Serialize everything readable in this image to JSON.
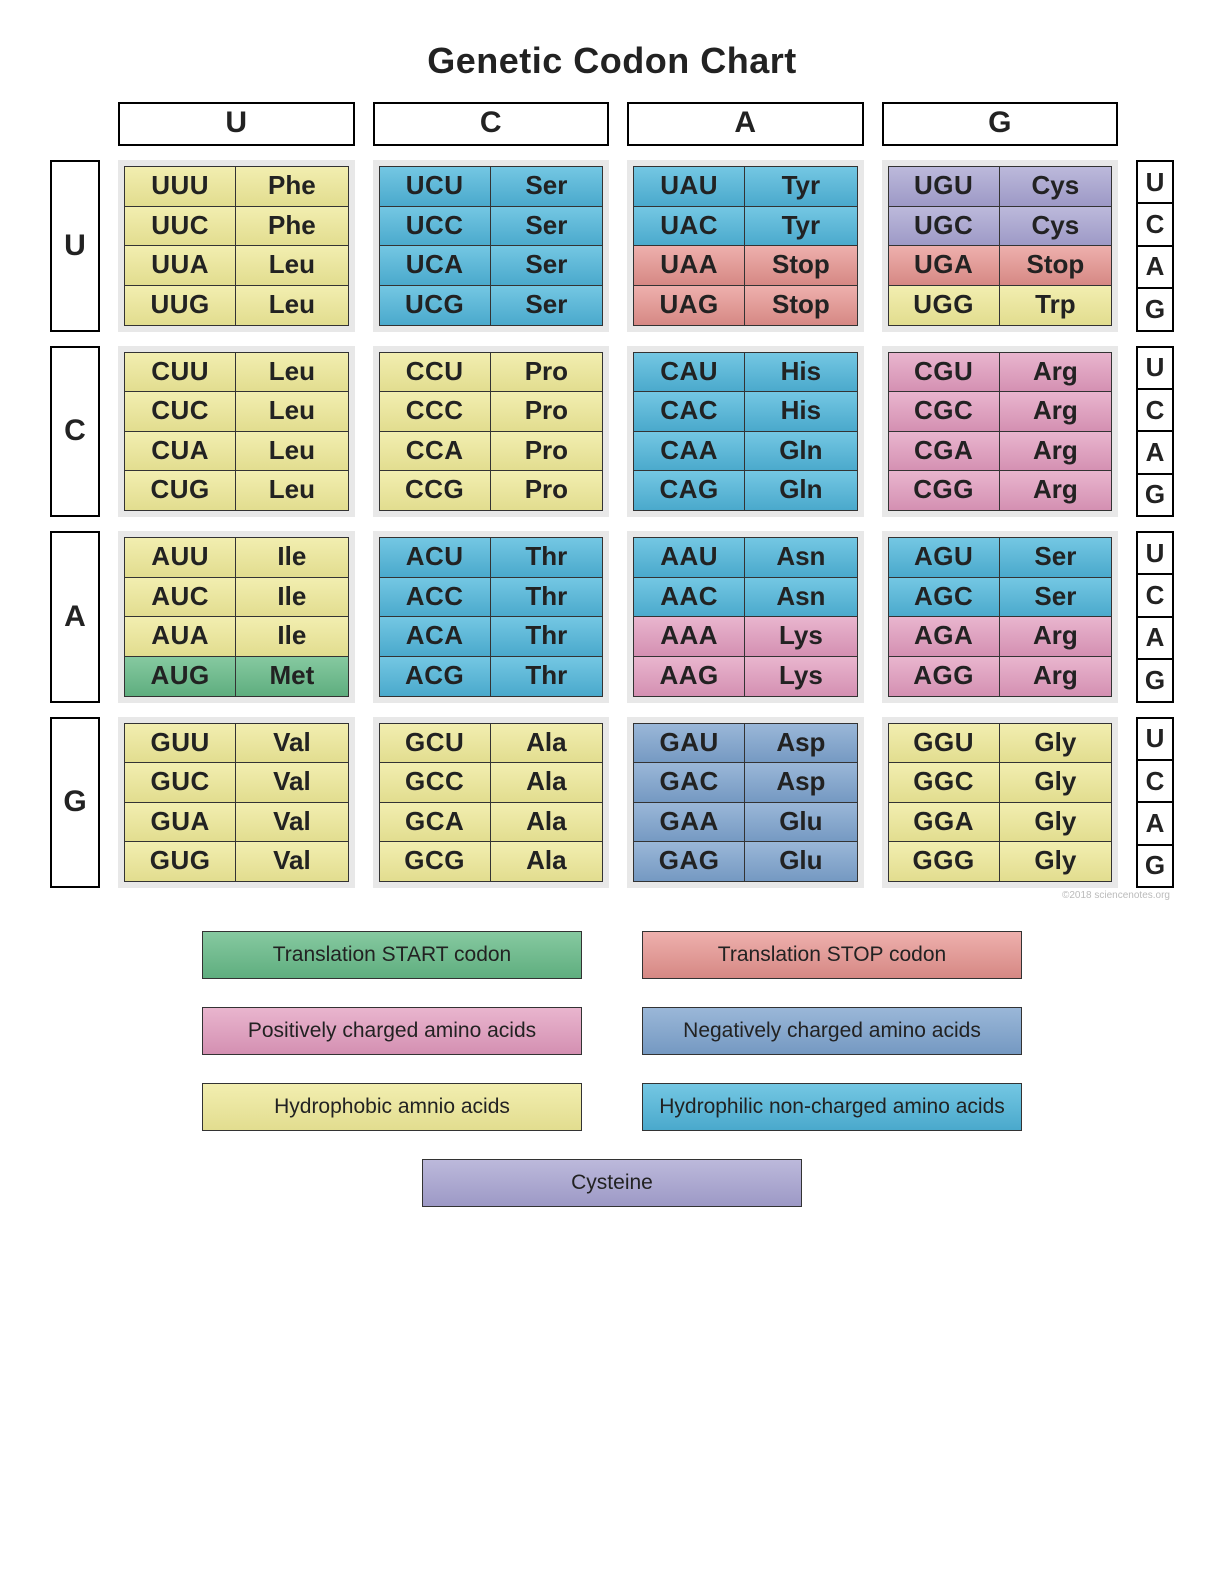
{
  "title": "Genetic Codon Chart",
  "attribution": "©2018 sciencenotes.org",
  "bases": [
    "U",
    "C",
    "A",
    "G"
  ],
  "colors": {
    "start": {
      "from": "#86c9a0",
      "to": "#5fae7f"
    },
    "stop": {
      "from": "#eeb0ad",
      "to": "#d68884"
    },
    "positive": {
      "from": "#e9b5ce",
      "to": "#d490b2"
    },
    "negative": {
      "from": "#9ab7d8",
      "to": "#7599c2"
    },
    "hydrophobic": {
      "from": "#f2eeb0",
      "to": "#e2dd8f"
    },
    "hydrophilic": {
      "from": "#74c7e3",
      "to": "#4aa9cc"
    },
    "cysteine": {
      "from": "#bcb9db",
      "to": "#9d99c6"
    },
    "block_bg": "#e8e8e8"
  },
  "table": {
    "U": {
      "U": [
        [
          "UUU",
          "Phe",
          "hydrophobic"
        ],
        [
          "UUC",
          "Phe",
          "hydrophobic"
        ],
        [
          "UUA",
          "Leu",
          "hydrophobic"
        ],
        [
          "UUG",
          "Leu",
          "hydrophobic"
        ]
      ],
      "C": [
        [
          "UCU",
          "Ser",
          "hydrophilic"
        ],
        [
          "UCC",
          "Ser",
          "hydrophilic"
        ],
        [
          "UCA",
          "Ser",
          "hydrophilic"
        ],
        [
          "UCG",
          "Ser",
          "hydrophilic"
        ]
      ],
      "A": [
        [
          "UAU",
          "Tyr",
          "hydrophilic"
        ],
        [
          "UAC",
          "Tyr",
          "hydrophilic"
        ],
        [
          "UAA",
          "Stop",
          "stop"
        ],
        [
          "UAG",
          "Stop",
          "stop"
        ]
      ],
      "G": [
        [
          "UGU",
          "Cys",
          "cysteine"
        ],
        [
          "UGC",
          "Cys",
          "cysteine"
        ],
        [
          "UGA",
          "Stop",
          "stop"
        ],
        [
          "UGG",
          "Trp",
          "hydrophobic"
        ]
      ]
    },
    "C": {
      "U": [
        [
          "CUU",
          "Leu",
          "hydrophobic"
        ],
        [
          "CUC",
          "Leu",
          "hydrophobic"
        ],
        [
          "CUA",
          "Leu",
          "hydrophobic"
        ],
        [
          "CUG",
          "Leu",
          "hydrophobic"
        ]
      ],
      "C": [
        [
          "CCU",
          "Pro",
          "hydrophobic"
        ],
        [
          "CCC",
          "Pro",
          "hydrophobic"
        ],
        [
          "CCA",
          "Pro",
          "hydrophobic"
        ],
        [
          "CCG",
          "Pro",
          "hydrophobic"
        ]
      ],
      "A": [
        [
          "CAU",
          "His",
          "hydrophilic"
        ],
        [
          "CAC",
          "His",
          "hydrophilic"
        ],
        [
          "CAA",
          "Gln",
          "hydrophilic"
        ],
        [
          "CAG",
          "Gln",
          "hydrophilic"
        ]
      ],
      "G": [
        [
          "CGU",
          "Arg",
          "positive"
        ],
        [
          "CGC",
          "Arg",
          "positive"
        ],
        [
          "CGA",
          "Arg",
          "positive"
        ],
        [
          "CGG",
          "Arg",
          "positive"
        ]
      ]
    },
    "A": {
      "U": [
        [
          "AUU",
          "Ile",
          "hydrophobic"
        ],
        [
          "AUC",
          "Ile",
          "hydrophobic"
        ],
        [
          "AUA",
          "Ile",
          "hydrophobic"
        ],
        [
          "AUG",
          "Met",
          "start"
        ]
      ],
      "C": [
        [
          "ACU",
          "Thr",
          "hydrophilic"
        ],
        [
          "ACC",
          "Thr",
          "hydrophilic"
        ],
        [
          "ACA",
          "Thr",
          "hydrophilic"
        ],
        [
          "ACG",
          "Thr",
          "hydrophilic"
        ]
      ],
      "A": [
        [
          "AAU",
          "Asn",
          "hydrophilic"
        ],
        [
          "AAC",
          "Asn",
          "hydrophilic"
        ],
        [
          "AAA",
          "Lys",
          "positive"
        ],
        [
          "AAG",
          "Lys",
          "positive"
        ]
      ],
      "G": [
        [
          "AGU",
          "Ser",
          "hydrophilic"
        ],
        [
          "AGC",
          "Ser",
          "hydrophilic"
        ],
        [
          "AGA",
          "Arg",
          "positive"
        ],
        [
          "AGG",
          "Arg",
          "positive"
        ]
      ]
    },
    "G": {
      "U": [
        [
          "GUU",
          "Val",
          "hydrophobic"
        ],
        [
          "GUC",
          "Val",
          "hydrophobic"
        ],
        [
          "GUA",
          "Val",
          "hydrophobic"
        ],
        [
          "GUG",
          "Val",
          "hydrophobic"
        ]
      ],
      "C": [
        [
          "GCU",
          "Ala",
          "hydrophobic"
        ],
        [
          "GCC",
          "Ala",
          "hydrophobic"
        ],
        [
          "GCA",
          "Ala",
          "hydrophobic"
        ],
        [
          "GCG",
          "Ala",
          "hydrophobic"
        ]
      ],
      "A": [
        [
          "GAU",
          "Asp",
          "negative"
        ],
        [
          "GAC",
          "Asp",
          "negative"
        ],
        [
          "GAA",
          "Glu",
          "negative"
        ],
        [
          "GAG",
          "Glu",
          "negative"
        ]
      ],
      "G": [
        [
          "GGU",
          "Gly",
          "hydrophobic"
        ],
        [
          "GGC",
          "Gly",
          "hydrophobic"
        ],
        [
          "GGA",
          "Gly",
          "hydrophobic"
        ],
        [
          "GGG",
          "Gly",
          "hydrophobic"
        ]
      ]
    }
  },
  "legend": [
    [
      {
        "label": "Translation START codon",
        "color": "start"
      },
      {
        "label": "Translation STOP codon",
        "color": "stop"
      }
    ],
    [
      {
        "label": "Positively charged amino acids",
        "color": "positive"
      },
      {
        "label": "Negatively charged amino acids",
        "color": "negative"
      }
    ],
    [
      {
        "label": "Hydrophobic amnio acids",
        "color": "hydrophobic"
      },
      {
        "label": "Hydrophilic non-charged amino acids",
        "color": "hydrophilic"
      }
    ],
    [
      {
        "label": "Cysteine",
        "color": "cysteine"
      }
    ]
  ]
}
